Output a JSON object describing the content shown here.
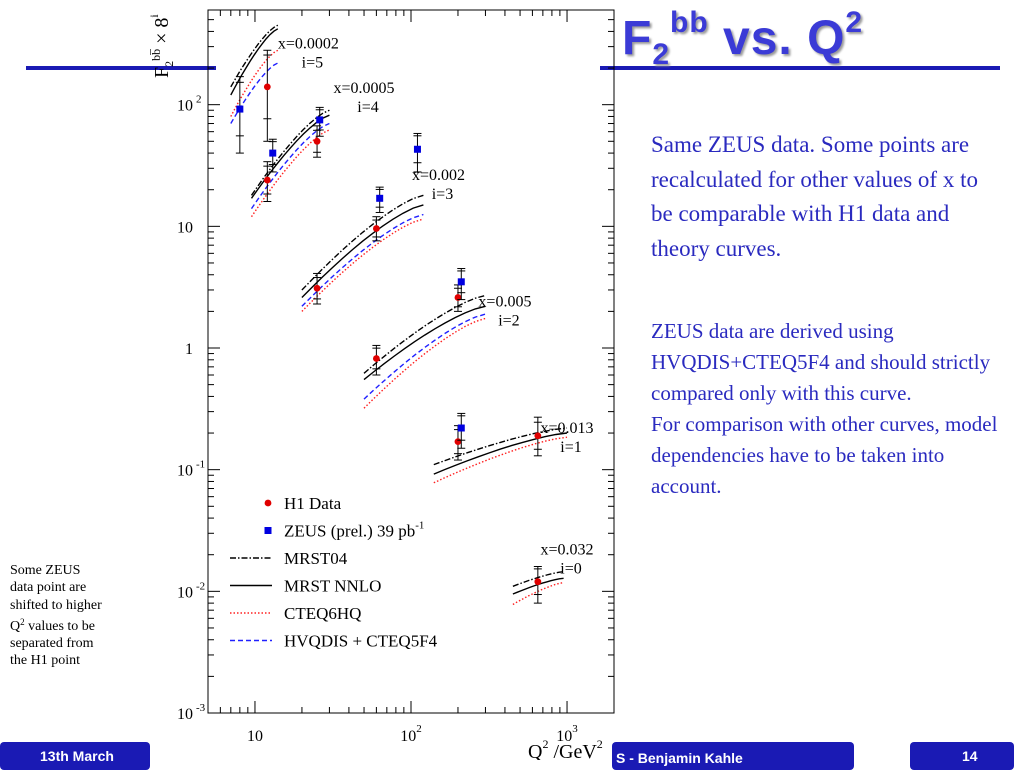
{
  "slide": {
    "title_main": "F",
    "title_sub": "2",
    "title_sup": "bb",
    "title_rest": " vs. Q",
    "title_sup2": "2",
    "note1": "Same ZEUS data. Some points are recalculated for other values of x to be comparable with H1 data and theory curves.",
    "note2_line1": "ZEUS data are derived using HVQDIS+CTEQ5F4 and should strictly compared only with this curve.",
    "note2_line2": "For comparison with other curves, model dependencies have to be taken into account.",
    "side_note_pre": "Some ZEUS data point are shifted to higher Q",
    "side_note_sup": "2",
    "side_note_post": " values to be separated from the H1 point",
    "footer_left": "13th March",
    "footer_middle": "S - Benjamin Kahle",
    "footer_right": "14"
  },
  "colors": {
    "accent": "#1a1ab4",
    "text_blue": "#2a2abf",
    "h1": "#e00000",
    "zeus": "#0000e0",
    "mrst04": "#000000",
    "mrst_nnlo": "#000000",
    "cteq6hq": "#ff2020",
    "hvqdis": "#2020ff"
  },
  "chart_data": {
    "type": "scatter",
    "x_scale": "log",
    "y_scale": "log",
    "xlim": [
      5,
      2000
    ],
    "ylim": [
      0.001,
      600
    ],
    "xlabel": "Q",
    "xlabel_sup": "2",
    "xlabel_units": " /GeV",
    "xlabel_units_sup": "2",
    "ylabel": "F",
    "ylabel_sub": "2",
    "ylabel_sup": "bb̅",
    "ylabel_rest": " × 8",
    "ylabel_rest_sup": "i",
    "x_ticks": [
      {
        "value": 10,
        "base": "10",
        "exp": ""
      },
      {
        "value": 100,
        "base": "10",
        "exp": "2"
      },
      {
        "value": 1000,
        "base": "10",
        "exp": "3"
      }
    ],
    "y_ticks": [
      {
        "value": 0.001,
        "base": "10",
        "exp": "-3"
      },
      {
        "value": 0.01,
        "base": "10",
        "exp": "-2"
      },
      {
        "value": 0.1,
        "base": "10",
        "exp": "-1"
      },
      {
        "value": 1,
        "base": "1",
        "exp": ""
      },
      {
        "value": 10,
        "base": "10",
        "exp": ""
      },
      {
        "value": 100,
        "base": "10",
        "exp": "2"
      }
    ],
    "bins": [
      {
        "x": "x=0.0002",
        "i": "i=5",
        "label_at": [
          22,
          290
        ]
      },
      {
        "x": "x=0.0005",
        "i": "i=4",
        "label_at": [
          50,
          125
        ]
      },
      {
        "x": "x=0.002",
        "i": "i=3",
        "label_at": [
          150,
          24
        ]
      },
      {
        "x": "x=0.005",
        "i": "i=2",
        "label_at": [
          400,
          2.2
        ]
      },
      {
        "x": "x=0.013",
        "i": "i=1",
        "label_at": [
          1000,
          0.2
        ]
      },
      {
        "x": "x=0.032",
        "i": "i=0",
        "label_at": [
          1000,
          0.02
        ]
      }
    ],
    "series": [
      {
        "name": "H1 Data",
        "kind": "points",
        "marker": "circle",
        "color": "#e00000",
        "points": [
          {
            "x": 12,
            "y": 140,
            "lo": 50,
            "hi": 280
          },
          {
            "x": 12,
            "y": 24,
            "lo": 16,
            "hi": 34
          },
          {
            "x": 25,
            "y": 50,
            "lo": 37,
            "hi": 67
          },
          {
            "x": 25,
            "y": 3.1,
            "lo": 2.3,
            "hi": 4.1
          },
          {
            "x": 60,
            "y": 9.6,
            "lo": 7.6,
            "hi": 12
          },
          {
            "x": 60,
            "y": 0.82,
            "lo": 0.6,
            "hi": 1.05
          },
          {
            "x": 200,
            "y": 2.6,
            "lo": 2.0,
            "hi": 3.3
          },
          {
            "x": 200,
            "y": 0.17,
            "lo": 0.12,
            "hi": 0.23
          },
          {
            "x": 650,
            "y": 0.19,
            "lo": 0.13,
            "hi": 0.27
          },
          {
            "x": 650,
            "y": 0.012,
            "lo": 0.008,
            "hi": 0.016
          }
        ]
      },
      {
        "name": "ZEUS (prel.) 39 pb",
        "name_sup": "-1",
        "kind": "points",
        "marker": "square",
        "color": "#0000e0",
        "points": [
          {
            "x": 8,
            "y": 92,
            "lo": 40,
            "hi": 170
          },
          {
            "x": 13,
            "y": 40,
            "lo": 28,
            "hi": 52
          },
          {
            "x": 26,
            "y": 75,
            "lo": 55,
            "hi": 95
          },
          {
            "x": 110,
            "y": 43,
            "lo": 28,
            "hi": 58
          },
          {
            "x": 63,
            "y": 17,
            "lo": 13,
            "hi": 21
          },
          {
            "x": 210,
            "y": 3.5,
            "lo": 2.5,
            "hi": 4.5
          },
          {
            "x": 210,
            "y": 0.22,
            "lo": 0.15,
            "hi": 0.29
          }
        ]
      },
      {
        "name": "MRST04",
        "kind": "line",
        "style": "dashdot",
        "color": "#000000",
        "segments": [
          [
            [
              7,
              140
            ],
            [
              14,
              450
            ]
          ],
          [
            [
              9.5,
              18
            ],
            [
              30,
              90
            ]
          ],
          [
            [
              20,
              3.0
            ],
            [
              120,
              18
            ]
          ],
          [
            [
              50,
              0.62
            ],
            [
              300,
              2.7
            ]
          ],
          [
            [
              140,
              0.11
            ],
            [
              1000,
              0.22
            ]
          ],
          [
            [
              450,
              0.011
            ],
            [
              950,
              0.0145
            ]
          ]
        ]
      },
      {
        "name": "MRST NNLO",
        "kind": "line",
        "style": "solid",
        "color": "#000000",
        "segments": [
          [
            [
              7,
              120
            ],
            [
              14,
              420
            ]
          ],
          [
            [
              9.5,
              17
            ],
            [
              30,
              82
            ]
          ],
          [
            [
              20,
              2.6
            ],
            [
              120,
              15
            ]
          ],
          [
            [
              50,
              0.55
            ],
            [
              300,
              2.2
            ]
          ],
          [
            [
              140,
              0.092
            ],
            [
              1000,
              0.2
            ]
          ],
          [
            [
              450,
              0.0095
            ],
            [
              950,
              0.0128
            ]
          ]
        ]
      },
      {
        "name": "CTEQ6HQ",
        "kind": "line",
        "style": "dotted",
        "color": "#ff2020",
        "segments": [
          [
            [
              7,
              80
            ],
            [
              14,
              280
            ]
          ],
          [
            [
              9.5,
              12
            ],
            [
              30,
              62
            ]
          ],
          [
            [
              20,
              2.0
            ],
            [
              120,
              11.5
            ]
          ],
          [
            [
              50,
              0.32
            ],
            [
              300,
              1.75
            ]
          ],
          [
            [
              140,
              0.078
            ],
            [
              1000,
              0.185
            ]
          ],
          [
            [
              450,
              0.0078
            ],
            [
              950,
              0.0118
            ]
          ]
        ]
      },
      {
        "name": "HVQDIS + CTEQ5F4",
        "kind": "line",
        "style": "dashed",
        "color": "#2020ff",
        "segments": [
          [
            [
              7,
              70
            ],
            [
              14,
              220
            ]
          ],
          [
            [
              9.5,
              14
            ],
            [
              30,
              70
            ]
          ],
          [
            [
              20,
              2.2
            ],
            [
              120,
              12.5
            ]
          ],
          [
            [
              50,
              0.38
            ],
            [
              300,
              1.9
            ]
          ]
        ]
      }
    ],
    "legend_position": "bottom-left"
  }
}
